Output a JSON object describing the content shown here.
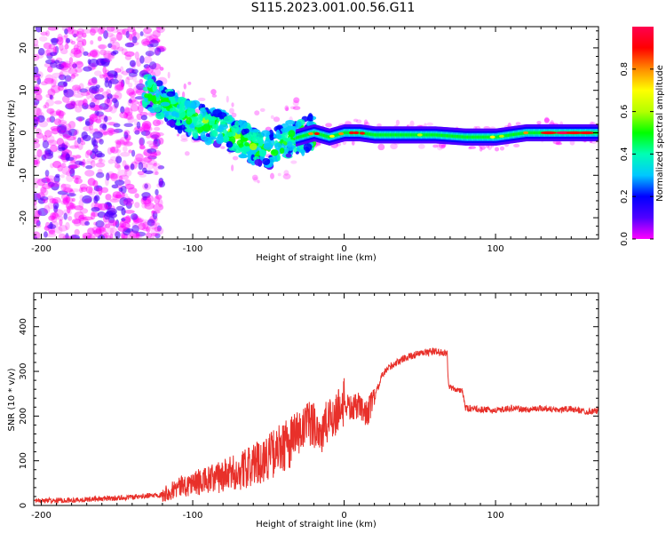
{
  "title": "S115.2023.001.00.56.G11",
  "colors": {
    "snr_line": "#e8302a",
    "frame": "#000000",
    "colormap": [
      "#ff00ff",
      "#5000ff",
      "#0000ff",
      "#00c8ff",
      "#00ffb4",
      "#00ff00",
      "#b4ff00",
      "#ffff00",
      "#ff8c00",
      "#ff0000",
      "#ff0050"
    ]
  },
  "chart_data": [
    {
      "type": "heatmap",
      "xlabel": "Height of straight line (km)",
      "ylabel": "Frequency (Hz)",
      "xlim": [
        -205,
        168
      ],
      "ylim": [
        -25,
        25
      ],
      "xticks": [
        "-200",
        "-100",
        "0",
        "100"
      ],
      "yticks": [
        "-20",
        "-10",
        "0",
        "10",
        "20"
      ],
      "ridge": {
        "x": [
          -130,
          -120,
          -110,
          -100,
          -90,
          -80,
          -70,
          -60,
          -50,
          -40,
          -30,
          -20,
          -10,
          0,
          10,
          20,
          40,
          60,
          80,
          100,
          120,
          140,
          160,
          168
        ],
        "y": [
          10,
          7,
          5,
          3,
          2,
          1,
          -1,
          -3,
          -4,
          -2,
          -1,
          0,
          -1,
          0,
          0,
          -0.5,
          -0.5,
          -0.5,
          -1,
          -1,
          0,
          0,
          0,
          0
        ]
      },
      "colorbar": {
        "label": "Normalized spectral amplitude",
        "range": [
          0,
          1
        ],
        "ticks": [
          "0.0",
          "0.2",
          "0.4",
          "0.6",
          "0.8"
        ]
      }
    },
    {
      "type": "line",
      "xlabel": "Height of straight line (km)",
      "ylabel": "SNR (10 * v/v)",
      "xlim": [
        -205,
        168
      ],
      "ylim": [
        0,
        475
      ],
      "xticks": [
        "-200",
        "-100",
        "0",
        "100"
      ],
      "yticks": [
        "0",
        "100",
        "200",
        "300",
        "400"
      ],
      "series": [
        {
          "x": [
            -205,
            -180,
            -160,
            -140,
            -120,
            -110,
            -100,
            -90,
            -80,
            -70,
            -60,
            -50,
            -40,
            -30,
            -25,
            -20,
            -15,
            -10,
            -5,
            0,
            5,
            10,
            15,
            20,
            25,
            30,
            40,
            50,
            60,
            68,
            69,
            75,
            78,
            80,
            90,
            100,
            110,
            120,
            130,
            140,
            150,
            160,
            168
          ],
          "y": [
            10,
            12,
            15,
            18,
            25,
            40,
            50,
            55,
            65,
            75,
            90,
            110,
            130,
            160,
            175,
            185,
            160,
            190,
            210,
            230,
            215,
            225,
            205,
            240,
            290,
            310,
            330,
            340,
            345,
            340,
            265,
            258,
            260,
            218,
            215,
            212,
            218,
            214,
            218,
            214,
            216,
            210,
            212
          ]
        }
      ]
    }
  ]
}
